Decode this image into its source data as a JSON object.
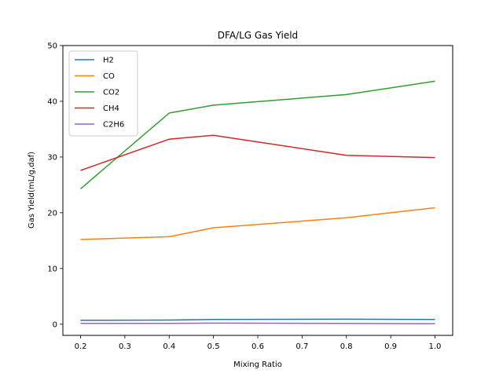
{
  "chart_data": {
    "type": "line",
    "title": "DFA/LG Gas Yield",
    "xlabel": "Mixing Ratio",
    "ylabel": "Gas Yield(mL/g,daf)",
    "x": [
      0.2,
      0.4,
      0.5,
      0.8,
      1.0
    ],
    "xlim": [
      0.16,
      1.04
    ],
    "ylim": [
      -2,
      50
    ],
    "xticks": [
      0.2,
      0.3,
      0.4,
      0.5,
      0.6,
      0.7,
      0.8,
      0.9,
      1.0
    ],
    "xtick_labels": [
      "0.2",
      "0.3",
      "0.4",
      "0.5",
      "0.6",
      "0.7",
      "0.8",
      "0.9",
      "1.0"
    ],
    "yticks": [
      0,
      10,
      20,
      30,
      40,
      50
    ],
    "ytick_labels": [
      "0",
      "10",
      "20",
      "30",
      "40",
      "50"
    ],
    "grid": false,
    "legend_position": "top-left",
    "series": [
      {
        "name": "H2",
        "color": "#1f77b4",
        "values": [
          0.7,
          0.75,
          0.85,
          0.9,
          0.85
        ]
      },
      {
        "name": "CO",
        "color": "#ff7f0e",
        "values": [
          15.2,
          15.7,
          17.3,
          19.1,
          20.9
        ]
      },
      {
        "name": "CO2",
        "color": "#2ca02c",
        "values": [
          24.3,
          37.9,
          39.3,
          41.2,
          43.6
        ]
      },
      {
        "name": "CH4",
        "color": "#d62728",
        "values": [
          27.6,
          33.2,
          33.9,
          30.3,
          29.9
        ]
      },
      {
        "name": "C2H6",
        "color": "#9467bd",
        "values": [
          0.15,
          0.15,
          0.2,
          0.15,
          0.1
        ]
      }
    ]
  }
}
